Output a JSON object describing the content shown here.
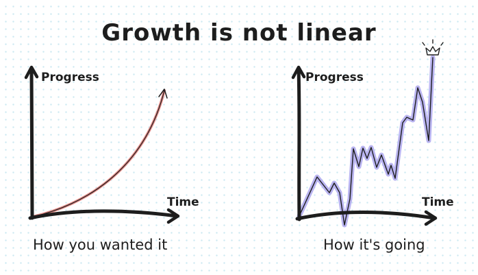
{
  "title": "Growth is not linear",
  "left_panel": {
    "ylabel": "Progress",
    "xlabel": "Time",
    "caption": "How you wanted it",
    "curve_color": "#e38b87"
  },
  "right_panel": {
    "ylabel": "Progress",
    "xlabel": "Time",
    "caption": "How it's going",
    "line_color": "#b9b4f0",
    "icon": "crown-icon"
  },
  "colors": {
    "ink": "#1d1d1d",
    "dot_grid": "#cfeaf2"
  }
}
